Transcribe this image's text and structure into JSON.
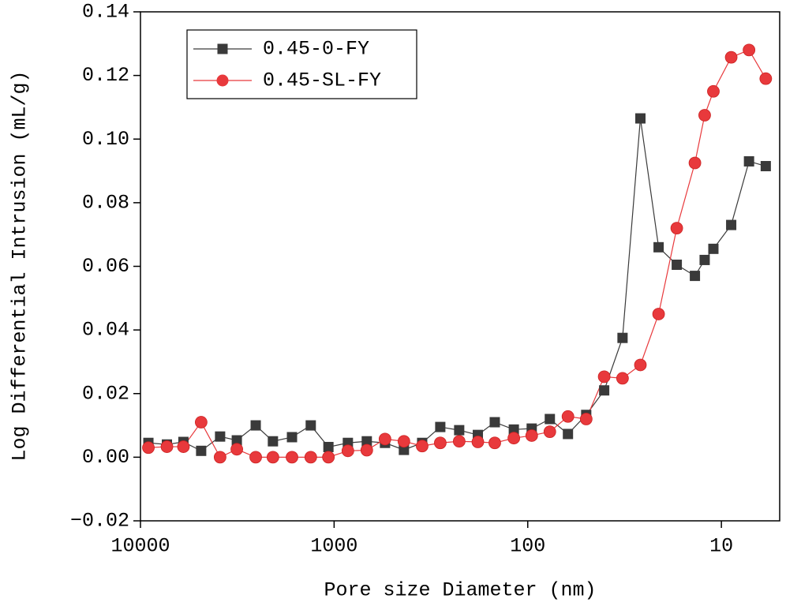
{
  "chart_data": {
    "type": "line",
    "xlabel": "Pore size Diameter (nm)",
    "ylabel": "Log Differential Intrusion (mL/g)",
    "xscale": "log",
    "xlim": [
      10000,
      5
    ],
    "xticks": [
      10000,
      1000,
      100,
      10
    ],
    "ylim": [
      -0.02,
      0.14
    ],
    "yticks": [
      {
        "value": -0.02,
        "label": "−0.02"
      },
      {
        "value": 0,
        "label": "0.00"
      },
      0.02,
      0.04,
      0.06,
      0.08,
      {
        "value": 0.1,
        "label": "0.10"
      },
      0.12,
      0.14
    ],
    "legend": "upper left",
    "x": [
      9100,
      7300,
      6000,
      4860,
      3880,
      3180,
      2540,
      2070,
      1650,
      1320,
      1070,
      849,
      678,
      546,
      436,
      351,
      283,
      226,
      181,
      148,
      118,
      95.4,
      76.9,
      62.0,
      49.9,
      40.3,
      32.4,
      26.2,
      21.1,
      17.0,
      13.7,
      12.2,
      11.0,
      8.9,
      7.2,
      5.9
    ],
    "series": [
      {
        "name": "0.45-0-FY",
        "color": "#3a3a3a",
        "marker": "square",
        "values": [
          0.0045,
          0.004,
          0.0048,
          0.002,
          0.0065,
          0.0053,
          0.01,
          0.005,
          0.0063,
          0.01,
          0.0032,
          0.0045,
          0.005,
          0.0045,
          0.0023,
          0.0045,
          0.0095,
          0.0085,
          0.007,
          0.011,
          0.0087,
          0.009,
          0.012,
          0.0073,
          0.0133,
          0.021,
          0.0375,
          0.1065,
          0.066,
          0.0605,
          0.057,
          0.062,
          0.0655,
          0.073,
          0.093,
          0.0915
        ]
      },
      {
        "name": "0.45-SL-FY",
        "color": "#e8393c",
        "marker": "circle",
        "values": [
          0.003,
          0.0033,
          0.0033,
          0.011,
          0.0,
          0.0025,
          0.0,
          0.0,
          0.0,
          0.0,
          0.0,
          0.002,
          0.0022,
          0.0057,
          0.005,
          0.0035,
          0.0045,
          0.005,
          0.0048,
          0.0045,
          0.006,
          0.0068,
          0.008,
          0.0128,
          0.012,
          0.0253,
          0.0248,
          0.029,
          0.045,
          0.072,
          0.0925,
          0.1075,
          0.115,
          0.1257,
          0.128,
          0.119
        ]
      }
    ]
  }
}
